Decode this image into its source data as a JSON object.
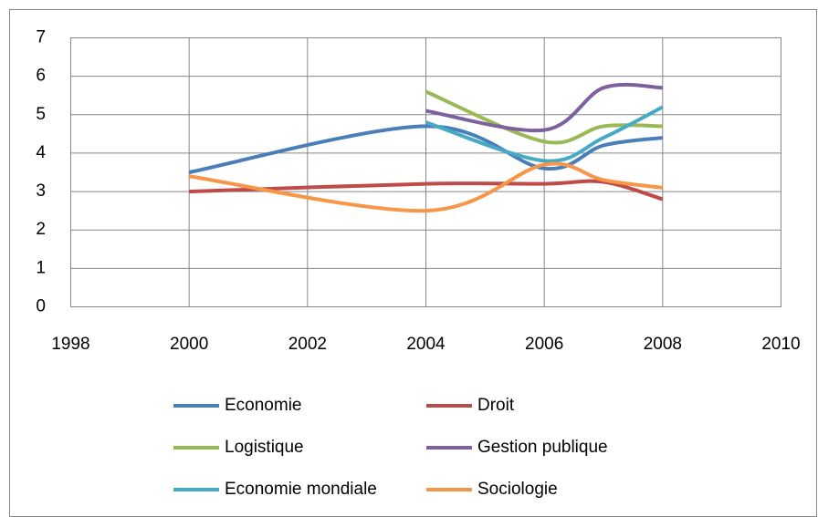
{
  "chart_data": {
    "type": "line",
    "x": [
      2000,
      2004,
      2006,
      2007,
      2008
    ],
    "series": [
      {
        "name": "Economie",
        "color": "#4a7ebb",
        "values": [
          3.5,
          4.7,
          3.6,
          4.2,
          4.4
        ]
      },
      {
        "name": "Droit",
        "color": "#be4b48",
        "values": [
          3.0,
          3.2,
          3.2,
          3.25,
          2.8
        ]
      },
      {
        "name": "Logistique",
        "color": "#98b954",
        "values": [
          null,
          5.6,
          4.3,
          4.7,
          4.7
        ]
      },
      {
        "name": "Gestion publique",
        "color": "#7d60a0",
        "values": [
          null,
          5.1,
          4.6,
          5.7,
          5.7
        ]
      },
      {
        "name": "Economie mondiale",
        "color": "#46aac5",
        "values": [
          null,
          4.8,
          3.8,
          4.4,
          5.2
        ]
      },
      {
        "name": "Sociologie",
        "color": "#f79646",
        "values": [
          3.4,
          2.5,
          3.7,
          3.3,
          3.1
        ]
      }
    ],
    "xlim": [
      1998,
      2010
    ],
    "xticks": [
      1998,
      2000,
      2002,
      2004,
      2006,
      2008,
      2010
    ],
    "ylim": [
      0,
      7
    ],
    "yticks": [
      0,
      1,
      2,
      3,
      4,
      5,
      6,
      7
    ],
    "grid": true,
    "legend": "bottom"
  }
}
